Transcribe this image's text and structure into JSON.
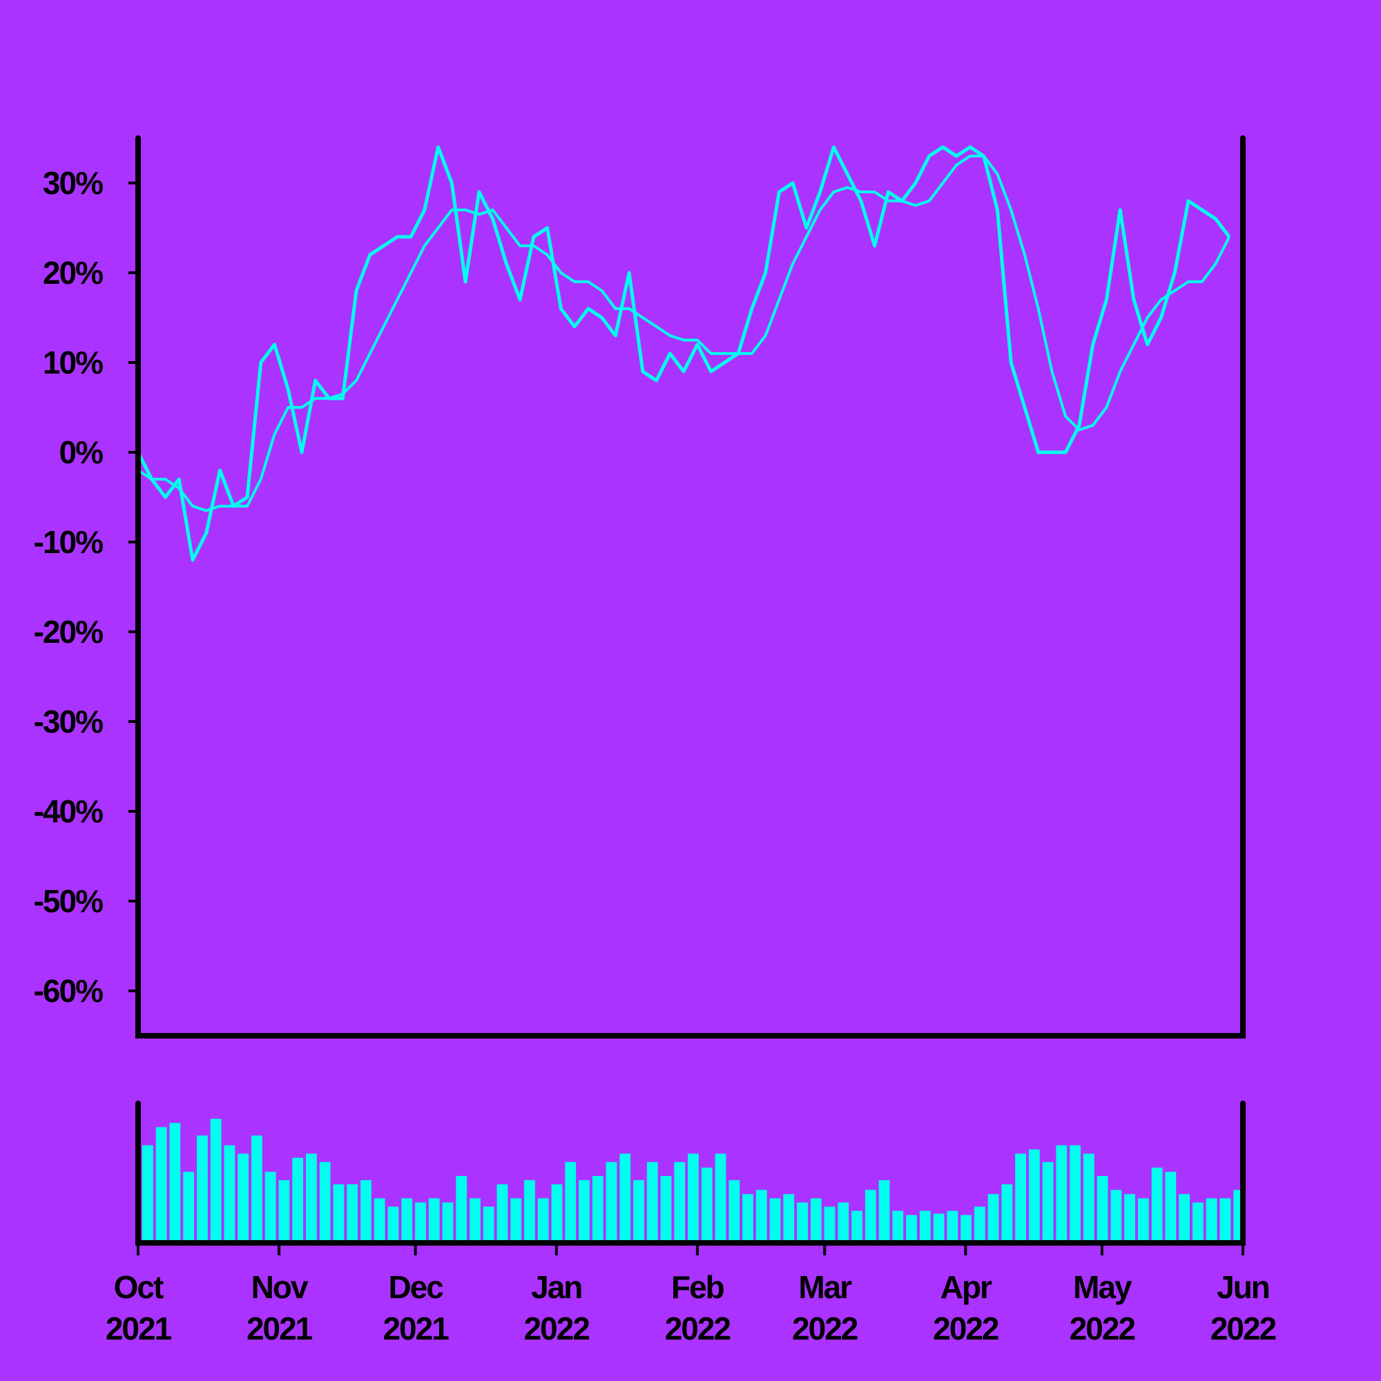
{
  "chart_data": [
    {
      "type": "line",
      "x": [
        0,
        3,
        6,
        9,
        12,
        15,
        18,
        21,
        24,
        27,
        30,
        33,
        36,
        39,
        42,
        45,
        48,
        51,
        54,
        57,
        60,
        63,
        66,
        69,
        72,
        75,
        78,
        81,
        84,
        87,
        90,
        93,
        96,
        99,
        102,
        105,
        108,
        111,
        114,
        117,
        120,
        123,
        126,
        129,
        132,
        135,
        138,
        141,
        144,
        147,
        150,
        153,
        156,
        159,
        162,
        165,
        168,
        171,
        174,
        177,
        180,
        183,
        186,
        189,
        192,
        195,
        198,
        201,
        204,
        207,
        210,
        213,
        216,
        219,
        222,
        225,
        228,
        231,
        234,
        237,
        240
      ],
      "series": [
        {
          "color": "#00ffee",
          "values": [
            0,
            -3,
            -5,
            -3,
            -12,
            -9,
            -2,
            -6,
            -5,
            10,
            12,
            7,
            0,
            8,
            6,
            6,
            18,
            22,
            23,
            24,
            24,
            27,
            34,
            30,
            19,
            29,
            26,
            21,
            17,
            24,
            25,
            16,
            14,
            16,
            15,
            13,
            20,
            9,
            8,
            11,
            9,
            12,
            9,
            10,
            11,
            16,
            20,
            29,
            30,
            25,
            29,
            34,
            31,
            28,
            23,
            29,
            28,
            30,
            33,
            34,
            33,
            34,
            33,
            27,
            10,
            5,
            0,
            0,
            0,
            3,
            12,
            17,
            27,
            17,
            12,
            15,
            20,
            28,
            27,
            26,
            24
          ]
        },
        {
          "color": "#00ffee",
          "values": [
            -2,
            -3,
            -3,
            -4,
            -6,
            -6.5,
            -6,
            -6,
            -6,
            -3,
            2,
            5,
            5,
            6,
            6,
            6.5,
            8,
            11,
            14,
            17,
            20,
            23,
            25,
            27,
            27,
            26.5,
            27,
            25,
            23,
            23,
            22,
            20,
            19,
            19,
            18,
            16,
            16,
            15,
            14,
            13,
            12.5,
            12.5,
            11,
            11,
            11,
            11,
            13,
            17,
            21,
            24,
            27,
            29,
            29.5,
            29,
            29,
            28,
            28,
            27.5,
            28,
            30,
            32,
            33,
            33,
            31,
            27,
            22,
            16,
            9,
            4,
            2.5,
            3,
            5,
            9,
            12,
            15,
            17,
            18,
            19,
            19,
            21,
            24
          ]
        }
      ],
      "xlim": [
        0,
        243
      ],
      "ylim": [
        -65,
        35
      ],
      "yticks": [
        {
          "value": -60,
          "label": "-60%"
        },
        {
          "value": -50,
          "label": "-50%"
        },
        {
          "value": -40,
          "label": "-40%"
        },
        {
          "value": -30,
          "label": "-30%"
        },
        {
          "value": -20,
          "label": "-20%"
        },
        {
          "value": -10,
          "label": "-10%"
        },
        {
          "value": 0,
          "label": "0%"
        },
        {
          "value": 10,
          "label": "10%"
        },
        {
          "value": 20,
          "label": "20%"
        },
        {
          "value": 30,
          "label": "30%"
        }
      ]
    },
    {
      "type": "bar",
      "x": [
        0,
        3,
        6,
        9,
        12,
        15,
        18,
        21,
        24,
        27,
        30,
        33,
        36,
        39,
        42,
        45,
        48,
        51,
        54,
        57,
        60,
        63,
        66,
        69,
        72,
        75,
        78,
        81,
        84,
        87,
        90,
        93,
        96,
        99,
        102,
        105,
        108,
        111,
        114,
        117,
        120,
        123,
        126,
        129,
        132,
        135,
        138,
        141,
        144,
        147,
        150,
        153,
        156,
        159,
        162,
        165,
        168,
        171,
        174,
        177,
        180,
        183,
        186,
        189,
        192,
        195,
        198,
        201,
        204,
        207,
        210,
        213,
        216,
        219,
        222,
        225,
        228,
        231,
        234,
        237,
        240
      ],
      "values": [
        70,
        83,
        86,
        51,
        77,
        89,
        70,
        64,
        77,
        51,
        45,
        61,
        64,
        58,
        42,
        42,
        45,
        32,
        26,
        32,
        29,
        32,
        29,
        48,
        32,
        26,
        42,
        32,
        45,
        32,
        42,
        58,
        45,
        48,
        58,
        64,
        45,
        58,
        48,
        58,
        64,
        54,
        64,
        45,
        35,
        38,
        32,
        35,
        29,
        32,
        26,
        29,
        23,
        38,
        45,
        23,
        20,
        23,
        21,
        23,
        20,
        26,
        35,
        42,
        64,
        67,
        58,
        70,
        70,
        64,
        48,
        38,
        35,
        32,
        54,
        51,
        35,
        29,
        32,
        32,
        38
      ],
      "color": "#00ffee",
      "xlim": [
        0,
        243
      ],
      "ylim": [
        0,
        100
      ],
      "xticks": [
        {
          "value": 0,
          "label": "Oct 2021"
        },
        {
          "value": 31,
          "label": "Nov 2021"
        },
        {
          "value": 61,
          "label": "Dec 2021"
        },
        {
          "value": 92,
          "label": "Jan 2022"
        },
        {
          "value": 123,
          "label": "Feb 2022"
        },
        {
          "value": 151,
          "label": "Mar 2022"
        },
        {
          "value": 182,
          "label": "Apr 2022"
        },
        {
          "value": 212,
          "label": "May 2022"
        },
        {
          "value": 243,
          "label": "Jun 2022"
        }
      ]
    }
  ]
}
